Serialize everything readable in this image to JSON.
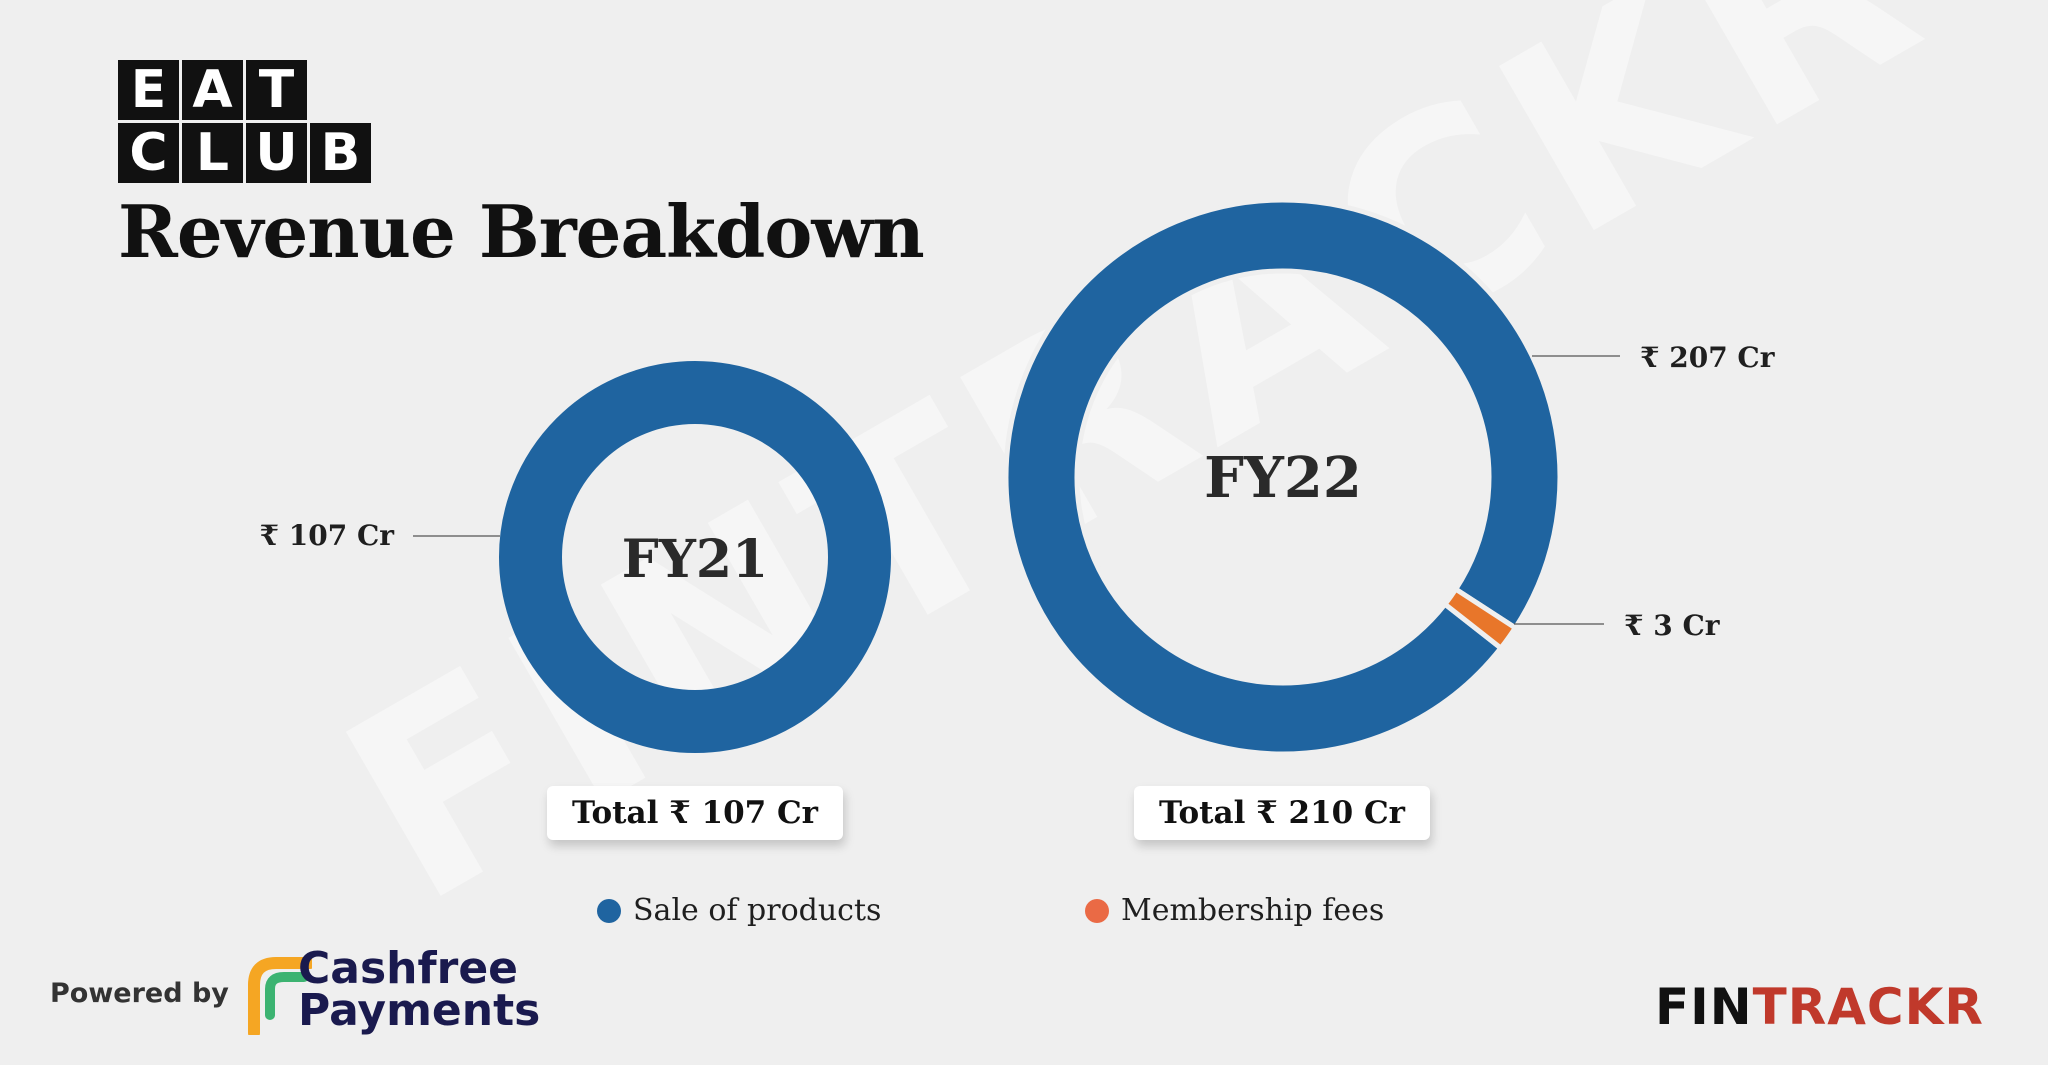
{
  "watermark": "FINTRACKR",
  "logo": {
    "row1": [
      "E",
      "A",
      "T"
    ],
    "row2": [
      "C",
      "L",
      "U",
      "B"
    ]
  },
  "title": "Revenue Breakdown",
  "chart_data": [
    {
      "type": "pie",
      "title": "FY21",
      "categories": [
        "Sale of products",
        "Membership fees"
      ],
      "values": [
        107,
        0
      ],
      "slice_labels": [
        "₹ 107 Cr"
      ],
      "total_label": "Total ₹ 107 Cr"
    },
    {
      "type": "pie",
      "title": "FY22",
      "categories": [
        "Sale of products",
        "Membership fees"
      ],
      "values": [
        207,
        3
      ],
      "slice_labels": [
        "₹ 207 Cr",
        "₹ 3 Cr"
      ],
      "total_label": "Total ₹ 210 Cr"
    }
  ],
  "legend": [
    {
      "label": "Sale of products",
      "color": "#1f64a0"
    },
    {
      "label": "Membership fees",
      "color": "#ea6a45"
    }
  ],
  "series_colors": [
    "#1f64a0",
    "#e8762a"
  ],
  "footer": {
    "powered_by": "Powered by",
    "brand_line1": "Cashfree",
    "brand_line2": "Payments",
    "fintrackr_a": "FIN",
    "fintrackr_b": "TRACKR"
  }
}
